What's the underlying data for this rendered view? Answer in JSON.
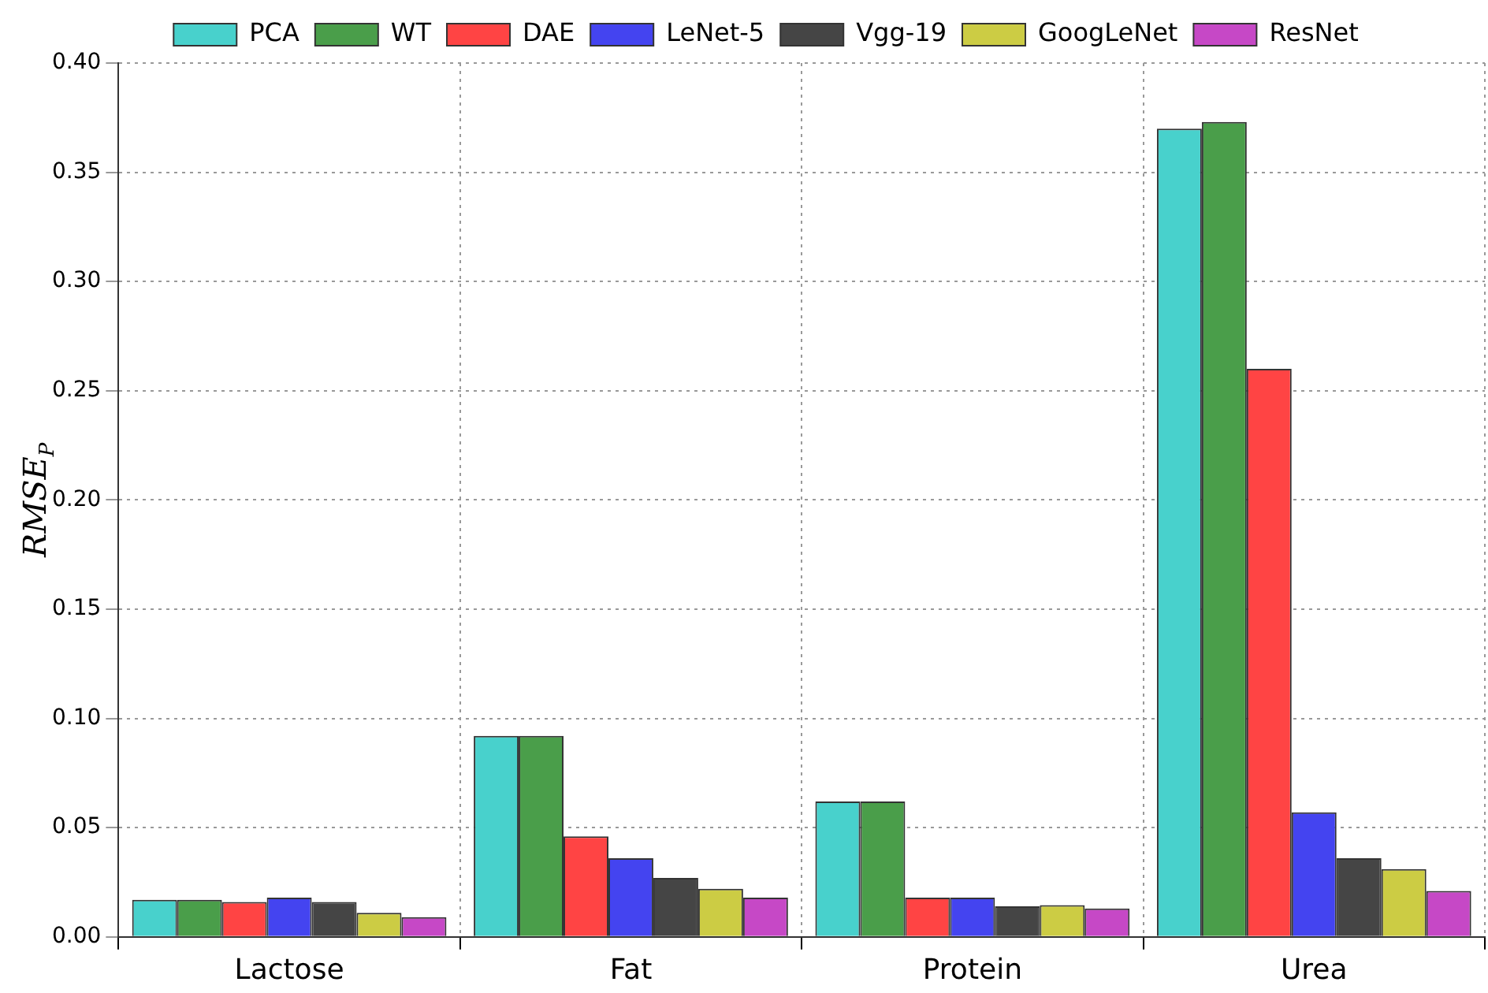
{
  "chart_data": {
    "type": "bar",
    "ylabel": "RMSE$_{P}$",
    "categories": [
      "Lactose",
      "Fat",
      "Protein",
      "Urea"
    ],
    "series": [
      {
        "name": "PCA",
        "color": "#48d1cc",
        "values": [
          0.017,
          0.092,
          0.062,
          0.37
        ]
      },
      {
        "name": "WT",
        "color": "#4a9e4a",
        "values": [
          0.017,
          0.092,
          0.062,
          0.373
        ]
      },
      {
        "name": "DAE",
        "color": "#ff4444",
        "values": [
          0.016,
          0.046,
          0.018,
          0.26
        ]
      },
      {
        "name": "LeNet-5",
        "color": "#4444f0",
        "values": [
          0.018,
          0.036,
          0.018,
          0.057
        ]
      },
      {
        "name": "Vgg-19",
        "color": "#454545",
        "values": [
          0.016,
          0.027,
          0.014,
          0.036
        ]
      },
      {
        "name": "GoogLeNet",
        "color": "#cccc44",
        "values": [
          0.011,
          0.022,
          0.0145,
          0.031
        ]
      },
      {
        "name": "ResNet",
        "color": "#c648c6",
        "values": [
          0.009,
          0.018,
          0.013,
          0.021
        ]
      }
    ],
    "ylim": [
      0,
      0.4
    ],
    "yticks": [
      {
        "value": 0,
        "label": "0.00"
      },
      0.05,
      {
        "value": 0.1,
        "label": "0.10"
      },
      0.15,
      {
        "value": 0.2,
        "label": "0.20"
      },
      0.25,
      {
        "value": 0.3,
        "label": "0.30"
      },
      0.35,
      {
        "value": 0.4,
        "label": "0.40"
      }
    ],
    "grid": true,
    "legend": "top"
  }
}
